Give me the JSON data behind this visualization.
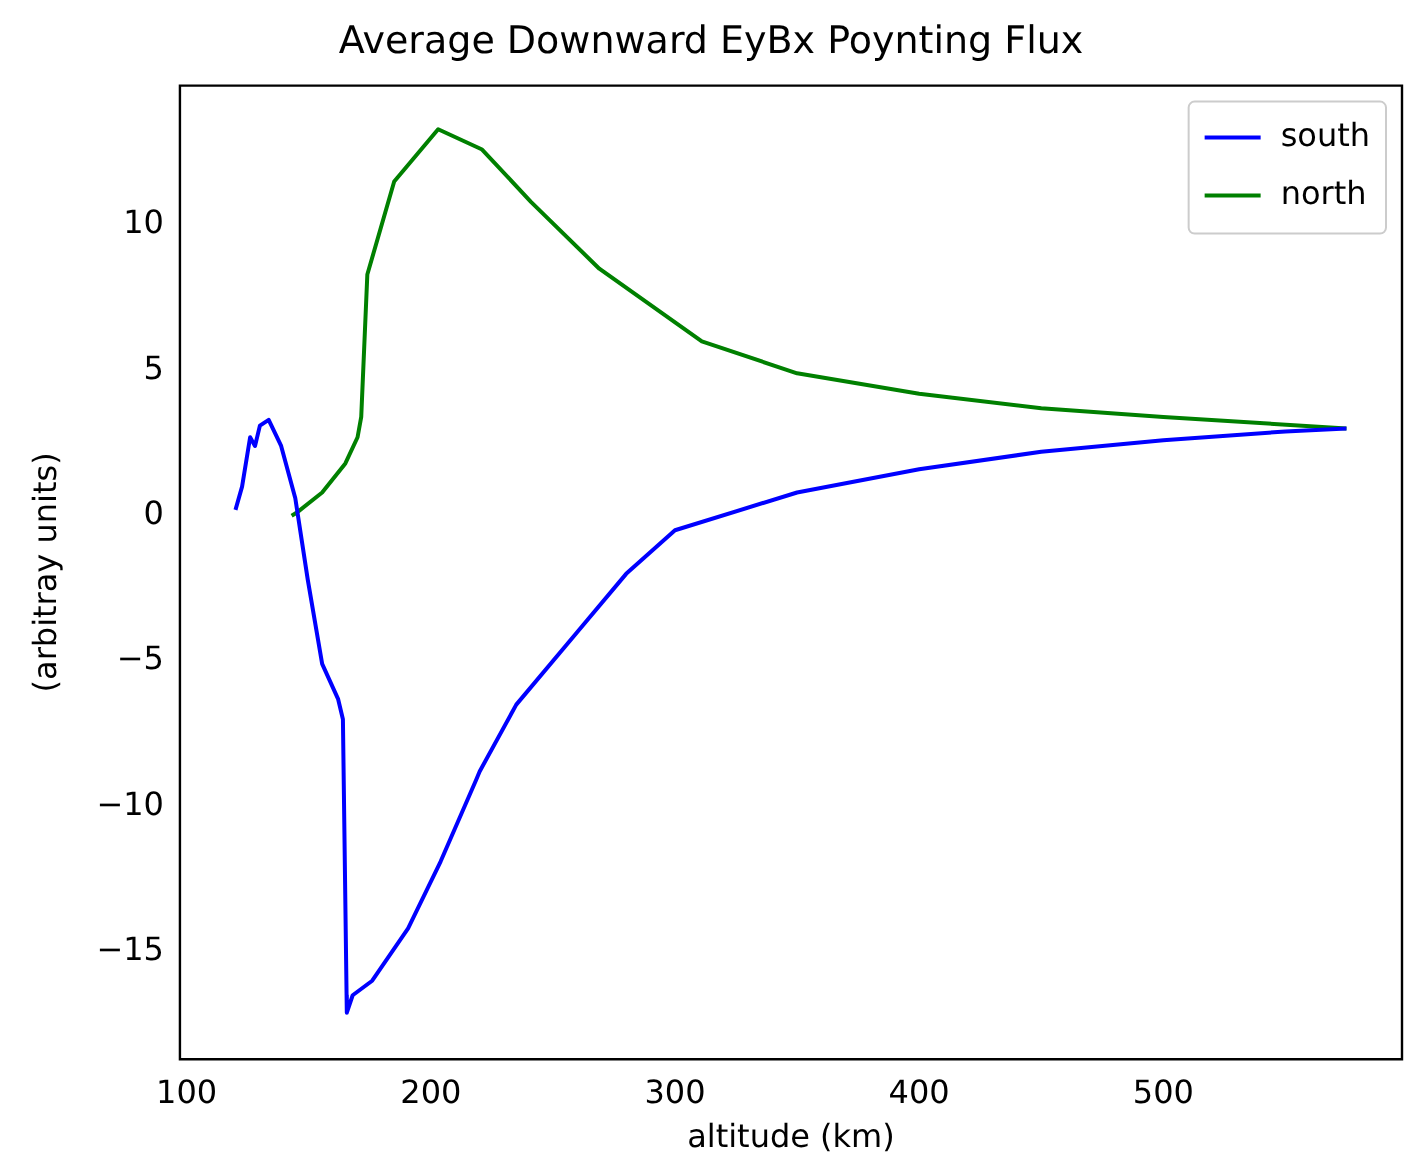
{
  "chart_data": {
    "type": "line",
    "title": "Average Downward EyBx Poynting Flux",
    "xlabel": "altitude (km)",
    "ylabel": "(arbitray units)",
    "xlim": [
      97.25,
      597.75
    ],
    "xticks": [
      100,
      200,
      300,
      400,
      500
    ],
    "ylim": [
      -18.7,
      14.8
    ],
    "yticks": [
      -15,
      -10,
      -5,
      0,
      5,
      10
    ],
    "legend": "top right",
    "grid": false,
    "marker": "none",
    "line_style": "solid",
    "series": [
      {
        "name": "south",
        "color": "#0000ff",
        "x": [
          120,
          122.7,
          126,
          128,
          130,
          133.6,
          138.7,
          144.5,
          149.6,
          155.5,
          162,
          164,
          165.5,
          165.6,
          168,
          176,
          190.7,
          204,
          218.5,
          220,
          235,
          260,
          280,
          300,
          350,
          400,
          450,
          500,
          550,
          575
        ],
        "values": [
          0.2,
          1.0,
          2.7,
          2.4,
          3.1,
          3.3,
          2.4,
          0.6,
          -2.2,
          -5.1,
          -6.3,
          -7.0,
          -16.5,
          -17.1,
          -16.5,
          -16.0,
          -14.2,
          -11.9,
          -9.1,
          -8.8,
          -6.5,
          -4.0,
          -2.0,
          -0.5,
          0.8,
          1.6,
          2.2,
          2.6,
          2.9,
          3.0
        ]
      },
      {
        "name": "north",
        "color": "#008000",
        "x": [
          143,
          145,
          155.5,
          165,
          170,
          171.5,
          174,
          185,
          203,
          221,
          241,
          269,
          311,
          350,
          400,
          450,
          500,
          575
        ],
        "values": [
          0,
          0.1,
          0.8,
          1.8,
          2.7,
          3.4,
          8.3,
          11.5,
          13.3,
          12.6,
          10.8,
          8.5,
          6.0,
          4.9,
          4.2,
          3.7,
          3.4,
          3.0
        ]
      }
    ]
  }
}
